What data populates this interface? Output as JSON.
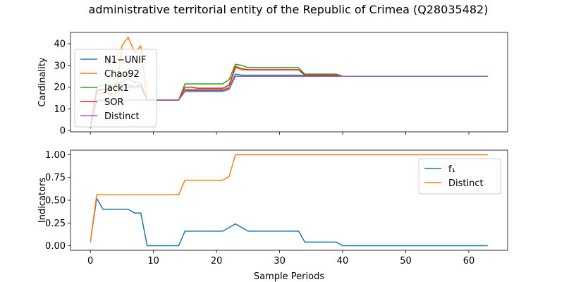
{
  "chart_data": {
    "title": "administrative territorial entity of the Republic of Crimea (Q28035482)",
    "xlabel": "Sample Periods",
    "x": [
      0,
      1,
      2,
      3,
      4,
      5,
      6,
      7,
      8,
      9,
      10,
      11,
      12,
      13,
      14,
      15,
      16,
      17,
      18,
      19,
      20,
      21,
      22,
      23,
      24,
      25,
      26,
      27,
      28,
      29,
      30,
      31,
      32,
      33,
      34,
      35,
      36,
      37,
      38,
      39,
      40,
      41,
      42,
      43,
      44,
      45,
      46,
      47,
      48,
      49,
      50,
      51,
      52,
      53,
      54,
      55,
      56,
      57,
      58,
      59,
      60,
      61,
      62,
      63
    ],
    "xlim": [
      -3.15,
      66.15
    ],
    "xticks": [
      0,
      10,
      20,
      30,
      40,
      50,
      60
    ],
    "panels": [
      {
        "type": "line",
        "ylabel": "Cardinality",
        "ylim": [
          -0.6,
          45.2
        ],
        "yticks": [
          0,
          10,
          20,
          30,
          40
        ],
        "legend_position": "upper-left",
        "series": [
          {
            "name": "N1−UNIF",
            "color": "#1f77b4",
            "values": [
              1,
              18,
              19,
              19,
              20,
              21,
              21,
              20,
              20,
              14,
              14,
              14,
              14,
              14,
              14,
              18.5,
              18.5,
              18.5,
              18.5,
              18.5,
              18.5,
              18.5,
              19.5,
              26,
              25.5,
              25.5,
              25.5,
              25.5,
              25.5,
              25.5,
              25.5,
              25.5,
              25.5,
              25.5,
              25.3,
              25.3,
              25.3,
              25.3,
              25.3,
              25.3,
              25,
              25,
              25,
              25,
              25,
              25,
              25,
              25,
              25,
              25,
              25,
              25,
              25,
              25,
              25,
              25,
              25,
              25,
              25,
              25,
              25,
              25,
              25,
              25
            ]
          },
          {
            "name": "Chao92",
            "color": "#ff7f0e",
            "values": [
              2,
              17,
              17,
              17,
              17,
              39,
              43,
              36,
              39,
              14,
              14,
              14,
              14,
              14,
              14,
              19,
              19,
              19,
              19,
              19,
              19,
              19,
              20,
              29,
              28,
              28,
              28,
              28,
              28,
              28,
              28,
              28,
              28,
              28,
              26,
              26,
              26,
              26,
              26,
              26,
              25,
              25,
              25,
              25,
              25,
              25,
              25,
              25,
              25,
              25,
              25,
              25,
              25,
              25,
              25,
              25,
              25,
              25,
              25,
              25,
              25,
              25,
              25,
              25
            ]
          },
          {
            "name": "Jack1",
            "color": "#2ca02c",
            "values": [
              2,
              20,
              21,
              21,
              21.5,
              22,
              24,
              22,
              22,
              14,
              14,
              14,
              14,
              14,
              14,
              21.5,
              21.5,
              21.5,
              21.5,
              21.5,
              21.5,
              21.5,
              23.5,
              30.5,
              30,
              29,
              29,
              29,
              29,
              29,
              29,
              29,
              29,
              29,
              26,
              26,
              26,
              26,
              26,
              26,
              25,
              25,
              25,
              25,
              25,
              25,
              25,
              25,
              25,
              25,
              25,
              25,
              25,
              25,
              25,
              25,
              25,
              25,
              25,
              25,
              25,
              25,
              25,
              25
            ]
          },
          {
            "name": "SOR",
            "color": "#d62728",
            "values": [
              2,
              19,
              19,
              19,
              20,
              20,
              20,
              20,
              21,
              14,
              14,
              14,
              14,
              14,
              14,
              20,
              20,
              19.5,
              19.5,
              19.5,
              19.5,
              19.5,
              21,
              29.5,
              28.5,
              28,
              28,
              28,
              28,
              28,
              28,
              28,
              28,
              28,
              25.5,
              25.5,
              25.5,
              25.5,
              25.5,
              25.5,
              25,
              25,
              25,
              25,
              25,
              25,
              25,
              25,
              25,
              25,
              25,
              25,
              25,
              25,
              25,
              25,
              25,
              25,
              25,
              25,
              25,
              25,
              25,
              25
            ]
          },
          {
            "name": "Distinct",
            "color": "#9467bd",
            "values": [
              1,
              14,
              14,
              14,
              14,
              14,
              14,
              14,
              14,
              14,
              14,
              14,
              14,
              14,
              14,
              18,
              18,
              18,
              18,
              18,
              18,
              18,
              19,
              25,
              25,
              25,
              25,
              25,
              25,
              25,
              25,
              25,
              25,
              25,
              25,
              25,
              25,
              25,
              25,
              25,
              25,
              25,
              25,
              25,
              25,
              25,
              25,
              25,
              25,
              25,
              25,
              25,
              25,
              25,
              25,
              25,
              25,
              25,
              25,
              25,
              25,
              25,
              25,
              25
            ]
          }
        ]
      },
      {
        "type": "line",
        "ylabel": "Indicators",
        "ylim": [
          -0.05,
          1.05
        ],
        "yticks": [
          "0.00",
          "0.25",
          "0.50",
          "0.75",
          "1.00"
        ],
        "legend_position": "upper-right",
        "series": [
          {
            "name": "f₁",
            "color": "#1f77b4",
            "values": [
              0.04,
              0.52,
              0.4,
              0.4,
              0.4,
              0.4,
              0.4,
              0.36,
              0.36,
              0,
              0,
              0,
              0,
              0,
              0,
              0.16,
              0.16,
              0.16,
              0.16,
              0.16,
              0.16,
              0.16,
              0.2,
              0.24,
              0.2,
              0.16,
              0.16,
              0.16,
              0.16,
              0.16,
              0.16,
              0.16,
              0.16,
              0.16,
              0.04,
              0.04,
              0.04,
              0.04,
              0.04,
              0.04,
              0,
              0,
              0,
              0,
              0,
              0,
              0,
              0,
              0,
              0,
              0,
              0,
              0,
              0,
              0,
              0,
              0,
              0,
              0,
              0,
              0,
              0,
              0,
              0
            ]
          },
          {
            "name": "Distinct",
            "color": "#ff7f0e",
            "values": [
              0.04,
              0.56,
              0.56,
              0.56,
              0.56,
              0.56,
              0.56,
              0.56,
              0.56,
              0.56,
              0.56,
              0.56,
              0.56,
              0.56,
              0.56,
              0.72,
              0.72,
              0.72,
              0.72,
              0.72,
              0.72,
              0.72,
              0.76,
              1,
              1,
              1,
              1,
              1,
              1,
              1,
              1,
              1,
              1,
              1,
              1,
              1,
              1,
              1,
              1,
              1,
              1,
              1,
              1,
              1,
              1,
              1,
              1,
              1,
              1,
              1,
              1,
              1,
              1,
              1,
              1,
              1,
              1,
              1,
              1,
              1,
              1,
              1,
              1,
              1
            ]
          }
        ]
      }
    ]
  }
}
